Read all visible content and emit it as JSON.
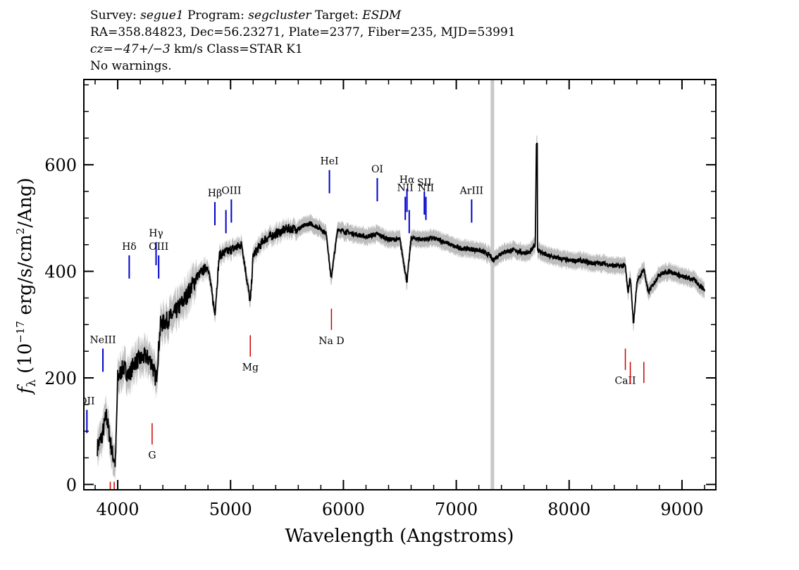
{
  "header": {
    "survey_label": "Survey:",
    "survey_value": "segue1",
    "program_label": "Program:",
    "program_value": "segcluster",
    "target_label": "Target:",
    "target_value": "ESDM",
    "line2": "RA=358.84823, Dec=56.23271, Plate=2377, Fiber=235, MJD=53991",
    "cz_label": "cz=",
    "cz_value": "−47+/−3",
    "cz_units": " km/s  Class=STAR   K1",
    "line4": "No warnings."
  },
  "chart_data": {
    "type": "line",
    "xlabel": "Wavelength (Angstroms)",
    "ylabel": "f_λ (10^-17 erg/s/cm^2/Ang)",
    "xlim": [
      3700,
      9300
    ],
    "ylim": [
      -10,
      760
    ],
    "x_ticks": [
      4000,
      5000,
      6000,
      7000,
      8000,
      9000
    ],
    "x_tick_labels": [
      "4000",
      "5000",
      "6000",
      "7000",
      "8000",
      "9000"
    ],
    "y_ticks": [
      0,
      200,
      400,
      600
    ],
    "y_tick_labels": [
      "0",
      "200",
      "400",
      "600"
    ],
    "grey_vline_x": 7320,
    "spectrum": {
      "name": "flux",
      "x": [
        3820,
        3860,
        3900,
        3950,
        3980,
        4000,
        4050,
        4100,
        4150,
        4200,
        4250,
        4300,
        4340,
        4380,
        4450,
        4500,
        4600,
        4700,
        4800,
        4861,
        4900,
        5000,
        5100,
        5175,
        5200,
        5300,
        5400,
        5500,
        5600,
        5700,
        5800,
        5850,
        5890,
        5950,
        6000,
        6100,
        6200,
        6300,
        6400,
        6500,
        6563,
        6600,
        6700,
        6800,
        6900,
        7000,
        7100,
        7200,
        7300,
        7320,
        7400,
        7500,
        7600,
        7650,
        7700,
        7710,
        7720,
        7760,
        7800,
        7900,
        8000,
        8100,
        8200,
        8300,
        8400,
        8498,
        8520,
        8542,
        8570,
        8600,
        8662,
        8700,
        8800,
        8900,
        9000,
        9100,
        9200
      ],
      "values": [
        70,
        90,
        130,
        60,
        40,
        200,
        220,
        205,
        230,
        235,
        240,
        230,
        195,
        300,
        310,
        320,
        350,
        390,
        410,
        320,
        430,
        440,
        450,
        340,
        430,
        460,
        470,
        480,
        480,
        490,
        480,
        470,
        385,
        480,
        475,
        470,
        465,
        470,
        460,
        460,
        380,
        462,
        460,
        462,
        455,
        445,
        442,
        440,
        430,
        420,
        435,
        440,
        435,
        435,
        450,
        640,
        440,
        435,
        430,
        425,
        420,
        420,
        415,
        415,
        410,
        410,
        360,
        390,
        300,
        380,
        405,
        360,
        395,
        400,
        390,
        385,
        365
      ],
      "noise_band_halfwidth": 15
    },
    "emission_lines": [
      {
        "label": "OII",
        "x": 3727,
        "y": 140
      },
      {
        "label": "NeIII",
        "x": 3869,
        "y": 255
      },
      {
        "label": "Hδ",
        "x": 4102,
        "y": 430
      },
      {
        "label": "Hγ",
        "x": 4340,
        "y": 455
      },
      {
        "label": "OIII",
        "x": 4363,
        "y": 430
      },
      {
        "label": "Hβ",
        "x": 4861,
        "y": 530
      },
      {
        "label": "OIII",
        "x": 4959,
        "y": 0,
        "nolabel": true
      },
      {
        "label": "OIII",
        "x": 5007,
        "y": 535
      },
      {
        "label": "HeI",
        "x": 5876,
        "y": 590
      },
      {
        "label": "OI",
        "x": 6300,
        "y": 575
      },
      {
        "label": "NII",
        "x": 6548,
        "y": 540
      },
      {
        "label": "Hα",
        "x": 6563,
        "y": 555
      },
      {
        "label": "NII",
        "x": 6583,
        "y": 0,
        "nolabel": true
      },
      {
        "label": "SII",
        "x": 6717,
        "y": 550
      },
      {
        "label": "NII",
        "x": 6731,
        "y": 540
      },
      {
        "label": "ArIII",
        "x": 7136,
        "y": 535
      }
    ],
    "absorption_lines": [
      {
        "label": "K",
        "x": 3934,
        "y": -5,
        "nolabel": true
      },
      {
        "label": "H",
        "x": 3969,
        "y": -5,
        "nolabel": true
      },
      {
        "label": "G",
        "x": 4305,
        "y": 75
      },
      {
        "label": "Mg",
        "x": 5175,
        "y": 240
      },
      {
        "label": "Na D",
        "x": 5894,
        "y": 290
      },
      {
        "label": "CaII",
        "x": 8498,
        "y": 215
      },
      {
        "label": "CaII",
        "x": 8542,
        "y": 0,
        "nolabel": true
      },
      {
        "label": "CaII",
        "x": 8662,
        "y": 0,
        "nolabel": true
      }
    ],
    "colors": {
      "spectrum": "#000000",
      "noise": "#bdbdbd",
      "emission": "#0000cc",
      "absorption": "#cc0000",
      "vline": "#c8c8c8"
    }
  }
}
